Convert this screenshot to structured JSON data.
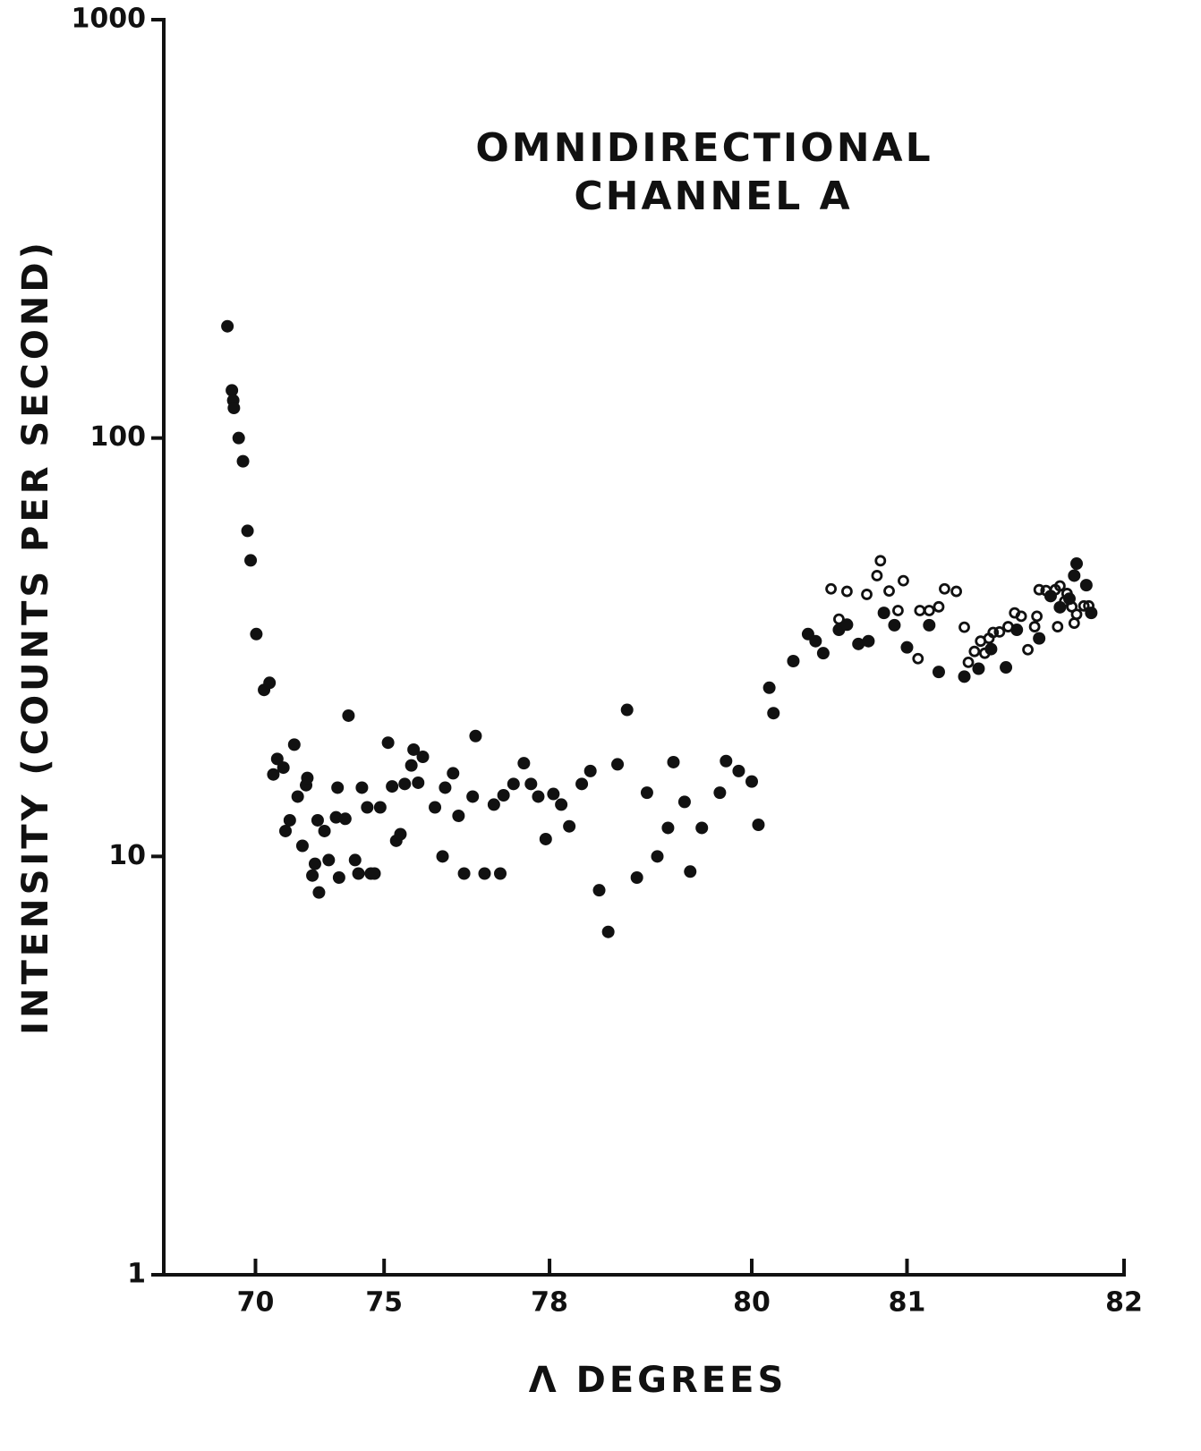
{
  "chart_data": {
    "type": "scatter",
    "title": [
      "OMNIDIRECTIONAL",
      "CHANNEL  A"
    ],
    "x_label": "Λ DEGREES",
    "y_label": "INTENSITY (COUNTS PER SECOND)",
    "xscale": "L-shell",
    "yscale": "log",
    "xlim": [
      60,
      82
    ],
    "ylim": [
      1,
      1000
    ],
    "xticks": [
      70,
      75,
      78,
      80,
      81,
      82
    ],
    "yticks": [
      1,
      10,
      100,
      1000
    ],
    "series": [
      {
        "marker": "filled",
        "color": "#111111",
        "x": [
          68.05,
          68.4,
          68.5,
          68.55,
          68.9,
          69.2,
          69.5,
          69.7,
          70.05,
          70.5,
          70.8,
          71.0,
          71.2,
          71.5,
          71.6,
          71.8,
          72.0,
          72.15,
          72.35,
          72.5,
          72.55,
          72.75,
          72.85,
          72.95,
          73.0,
          73.2,
          73.35,
          73.6,
          73.65,
          73.7,
          73.9,
          74.0,
          74.2,
          74.3,
          74.4,
          74.55,
          74.65,
          74.75,
          74.9,
          75.1,
          75.2,
          75.3,
          75.4,
          75.5,
          75.65,
          75.7,
          75.8,
          75.9,
          76.15,
          76.3,
          76.35,
          76.5,
          76.6,
          76.7,
          76.85,
          76.9,
          77.05,
          77.2,
          77.3,
          77.35,
          77.5,
          77.65,
          77.75,
          77.85,
          77.95,
          78.05,
          78.15,
          78.25,
          78.4,
          78.5,
          78.6,
          78.7,
          78.8,
          78.9,
          79.0,
          79.1,
          79.2,
          79.3,
          79.35,
          79.45,
          79.5,
          79.6,
          79.75,
          79.8,
          79.9,
          80.0,
          80.05,
          80.13,
          80.16,
          80.3,
          80.4,
          80.45,
          80.5,
          80.6,
          80.65,
          80.72,
          80.78,
          80.87,
          80.93,
          81.0,
          81.12,
          81.17,
          81.3,
          81.37,
          81.43,
          81.5,
          81.55,
          81.65,
          81.7,
          81.74,
          81.78,
          81.8,
          81.81,
          81.85,
          81.87
        ],
        "values": [
          185,
          130,
          123,
          118,
          100,
          88,
          60,
          51,
          34,
          25,
          26,
          15.7,
          17.1,
          16.3,
          11.5,
          12.2,
          18.5,
          13.9,
          10.6,
          14.8,
          15.4,
          9.0,
          9.6,
          12.2,
          8.2,
          11.5,
          9.8,
          12.4,
          14.6,
          8.9,
          12.3,
          21.7,
          9.8,
          9.1,
          14.6,
          13.1,
          9.1,
          9.1,
          13.1,
          18.7,
          14.7,
          10.9,
          11.3,
          14.9,
          16.5,
          18.0,
          15.0,
          17.3,
          13.1,
          10.0,
          14.6,
          15.8,
          12.5,
          9.1,
          13.9,
          19.4,
          9.1,
          13.3,
          9.1,
          14.0,
          14.9,
          16.7,
          14.9,
          13.9,
          11.0,
          14.1,
          13.3,
          11.8,
          14.9,
          16.0,
          8.3,
          6.6,
          16.6,
          22.4,
          8.9,
          14.2,
          10.0,
          11.7,
          16.8,
          13.5,
          9.2,
          11.7,
          14.2,
          16.9,
          16.0,
          15.1,
          11.9,
          25.3,
          22.0,
          29.3,
          34.0,
          32.7,
          30.6,
          34.8,
          35.8,
          32.2,
          32.7,
          38.2,
          35.7,
          31.6,
          35.7,
          27.6,
          26.9,
          28.1,
          31.3,
          28.3,
          34.8,
          33.2,
          41.9,
          39.4,
          41.3,
          46.9,
          50.1,
          44.5,
          38.2
        ]
      },
      {
        "marker": "open",
        "color": "#111111",
        "x": [
          80.55,
          80.6,
          80.65,
          80.77,
          80.83,
          80.85,
          80.9,
          80.95,
          80.98,
          81.06,
          81.07,
          81.12,
          81.17,
          81.2,
          81.26,
          81.3,
          81.32,
          81.35,
          81.38,
          81.4,
          81.42,
          81.44,
          81.47,
          81.51,
          81.54,
          81.57,
          81.6,
          81.63,
          81.64,
          81.65,
          81.68,
          81.72,
          81.73,
          81.74,
          81.76,
          81.77,
          81.79,
          81.8,
          81.81,
          81.84,
          81.86
        ],
        "values": [
          43.6,
          36.9,
          43.0,
          42.3,
          46.9,
          50.9,
          43.1,
          38.7,
          45.6,
          29.7,
          38.7,
          38.7,
          39.5,
          43.6,
          43.0,
          35.3,
          29.1,
          30.9,
          32.7,
          30.6,
          33.2,
          34.3,
          34.4,
          35.4,
          38.2,
          37.5,
          31.2,
          35.4,
          37.5,
          43.4,
          43.2,
          43.4,
          35.4,
          44.3,
          40.7,
          42.5,
          39.5,
          36.1,
          37.9,
          39.7,
          39.7
        ]
      }
    ]
  }
}
